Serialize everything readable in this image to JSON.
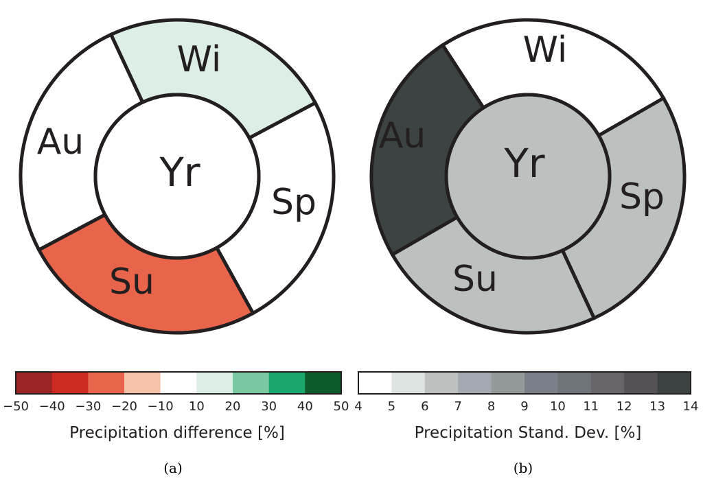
{
  "panels": [
    {
      "id": "a",
      "caption": "(a)",
      "center": {
        "label": "Yr",
        "value_color": "#ffffff"
      },
      "segments": [
        {
          "label": "Wi",
          "color": "#ddeee4"
        },
        {
          "label": "Sp",
          "color": "#ffffff"
        },
        {
          "label": "Su",
          "color": "#e8654b"
        },
        {
          "label": "Au",
          "color": "#ffffff"
        }
      ],
      "colorbar": {
        "title": "Precipitation difference [%]",
        "ticks": [
          "-50",
          "-40",
          "-30",
          "-20",
          "-10",
          "10",
          "20",
          "30",
          "40",
          "50"
        ],
        "colors": [
          "#9b2424",
          "#cd2a22",
          "#e8654b",
          "#f6c2aa",
          "#ffffff",
          "#ddeee4",
          "#79c8a0",
          "#1ba66c",
          "#0d5a2a"
        ]
      }
    },
    {
      "id": "b",
      "caption": "(b)",
      "center": {
        "label": "Yr",
        "value_color": "#bcc1c0"
      },
      "segments": [
        {
          "label": "Wi",
          "color": "#ffffff"
        },
        {
          "label": "Sp",
          "color": "#bcc1c0"
        },
        {
          "label": "Su",
          "color": "#bcc1c0"
        },
        {
          "label": "Au",
          "color": "#3c4443"
        }
      ],
      "colorbar": {
        "title": "Precipitation Stand. Dev. [%]",
        "ticks": [
          "4",
          "5",
          "6",
          "7",
          "8",
          "9",
          "10",
          "11",
          "12",
          "13",
          "14"
        ],
        "colors": [
          "#ffffff",
          "#dde4e2",
          "#bcc1c0",
          "#a4a9b1",
          "#949999",
          "#7a808a",
          "#6f737a",
          "#676569",
          "#545157",
          "#3c4443"
        ]
      }
    }
  ]
}
